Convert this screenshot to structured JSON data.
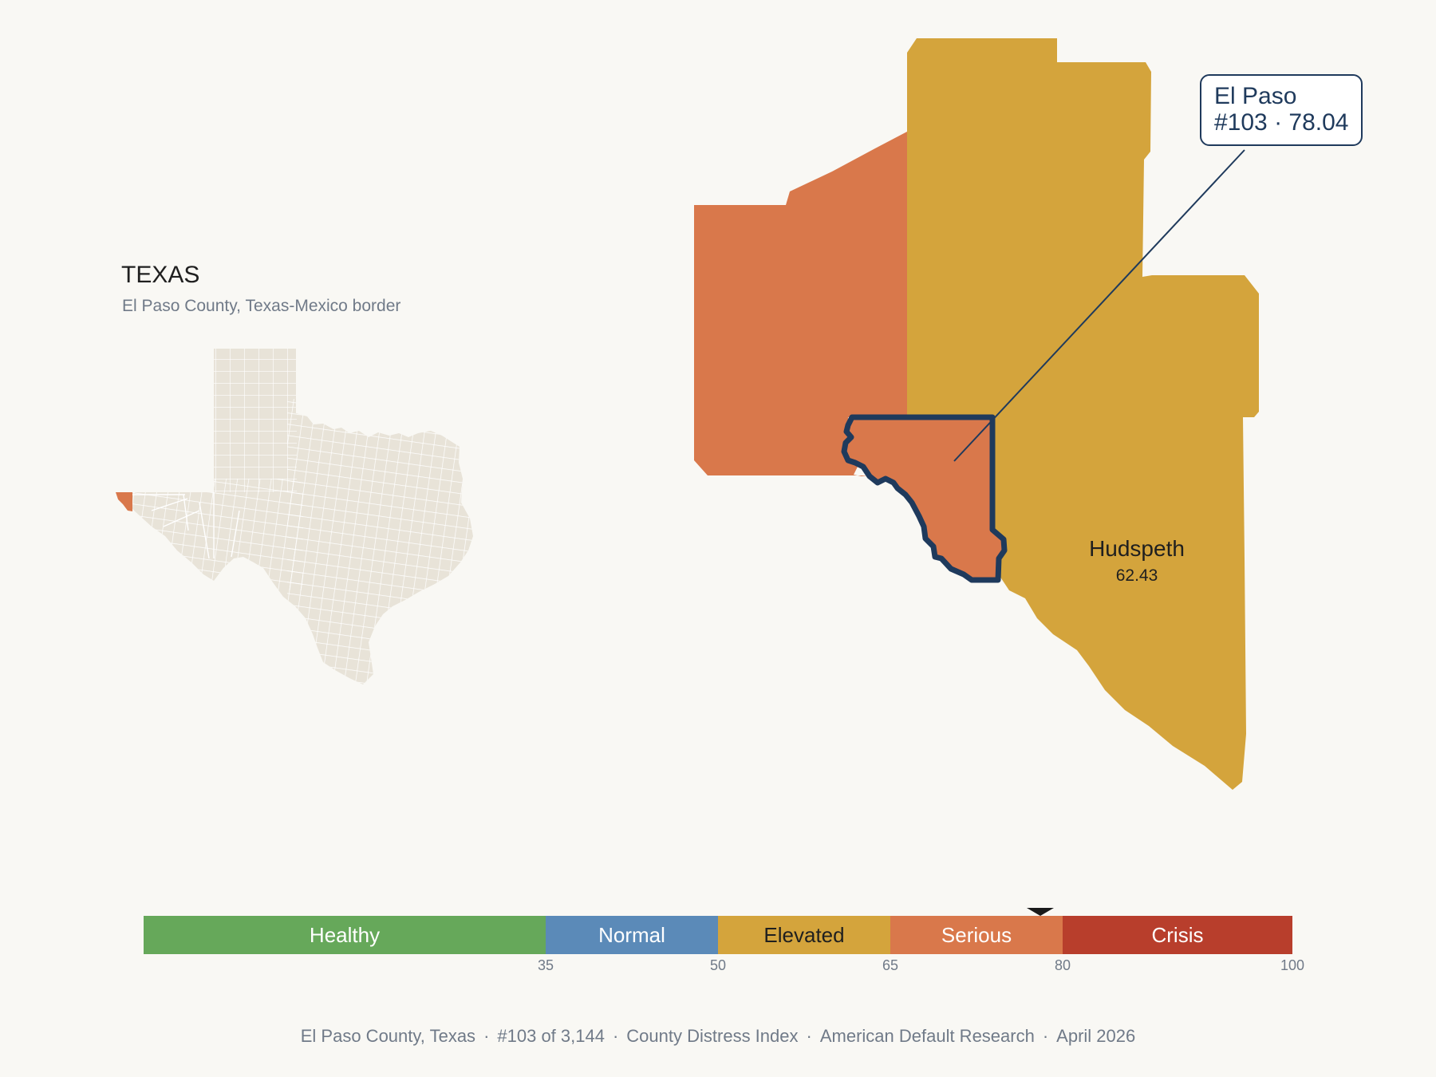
{
  "inset": {
    "title": "TEXAS",
    "subtitle": "El Paso County, Texas-Mexico border"
  },
  "focus_county": {
    "name": "El Paso",
    "rank_label": "#103 · 78.04",
    "rank": 103,
    "score": 78.04,
    "category": "Serious",
    "color": "#d9784b"
  },
  "neighbors": [
    {
      "name": "Hudspeth",
      "score": "62.43",
      "category": "Elevated",
      "color": "#d4a43c"
    },
    {
      "name": "",
      "category": "Elevated",
      "color": "#d4a43c"
    },
    {
      "name": "",
      "category": "Serious",
      "color": "#d9784b"
    }
  ],
  "scale": {
    "min": 0,
    "max": 100,
    "marker_value": 78.04,
    "segments": [
      {
        "label": "Healthy",
        "from": 0,
        "to": 35,
        "color": "#66a85a",
        "text_color": "#ffffff"
      },
      {
        "label": "Normal",
        "from": 35,
        "to": 50,
        "color": "#5b8ab8",
        "text_color": "#ffffff"
      },
      {
        "label": "Elevated",
        "from": 50,
        "to": 65,
        "color": "#d4a43c",
        "text_color": "#1f1f1f"
      },
      {
        "label": "Serious",
        "from": 65,
        "to": 80,
        "color": "#d9784b",
        "text_color": "#ffffff"
      },
      {
        "label": "Crisis",
        "from": 80,
        "to": 100,
        "color": "#b83e2c",
        "text_color": "#ffffff"
      }
    ],
    "ticks": [
      "35",
      "50",
      "65",
      "80",
      "100"
    ]
  },
  "footer": {
    "county": "El Paso County, Texas",
    "rank": "#103 of 3,144",
    "index": "County Distress Index",
    "publisher": "American Default Research",
    "date": "April 2026"
  },
  "colors": {
    "background": "#f9f8f4",
    "texas_fill": "#e8e3d8",
    "highlight_outline": "#1f3a5c"
  }
}
